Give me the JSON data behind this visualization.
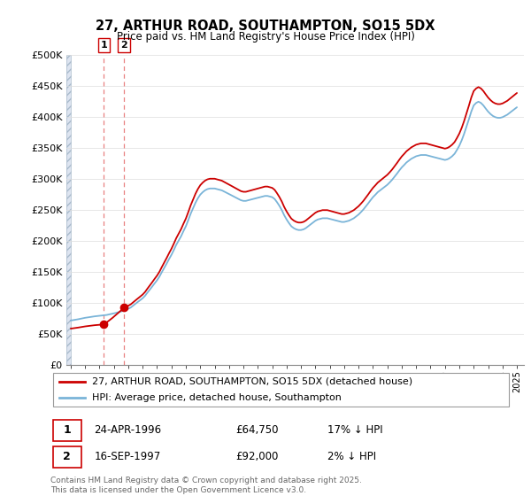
{
  "title": "27, ARTHUR ROAD, SOUTHAMPTON, SO15 5DX",
  "subtitle": "Price paid vs. HM Land Registry's House Price Index (HPI)",
  "ylim": [
    0,
    500000
  ],
  "yticks": [
    0,
    50000,
    100000,
    150000,
    200000,
    250000,
    300000,
    350000,
    400000,
    450000,
    500000
  ],
  "xlim_start": 1993.7,
  "xlim_end": 2025.5,
  "legend_line1": "27, ARTHUR ROAD, SOUTHAMPTON, SO15 5DX (detached house)",
  "legend_line2": "HPI: Average price, detached house, Southampton",
  "footer": "Contains HM Land Registry data © Crown copyright and database right 2025.\nThis data is licensed under the Open Government Licence v3.0.",
  "transactions": [
    {
      "id": 1,
      "date": "24-APR-1996",
      "price": 64750,
      "pct": "17% ↓ HPI",
      "year": 1996.3
    },
    {
      "id": 2,
      "date": "16-SEP-1997",
      "price": 92000,
      "pct": "2% ↓ HPI",
      "year": 1997.7
    }
  ],
  "hpi_color": "#7ab4d8",
  "price_color": "#cc0000",
  "marker_color": "#cc0000",
  "vline_color": "#e88080",
  "background_color": "#ffffff",
  "grid_color": "#dddddd",
  "hatch_bg": "#dde4f0",
  "years_hpi": [
    1994.0,
    1994.08,
    1994.17,
    1994.25,
    1994.33,
    1994.42,
    1994.5,
    1994.58,
    1994.67,
    1994.75,
    1994.83,
    1994.92,
    1995.0,
    1995.08,
    1995.17,
    1995.25,
    1995.33,
    1995.42,
    1995.5,
    1995.58,
    1995.67,
    1995.75,
    1995.83,
    1995.92,
    1996.0,
    1996.08,
    1996.17,
    1996.25,
    1996.33,
    1996.42,
    1996.5,
    1996.58,
    1996.67,
    1996.75,
    1996.83,
    1996.92,
    1997.0,
    1997.08,
    1997.17,
    1997.25,
    1997.33,
    1997.42,
    1997.5,
    1997.58,
    1997.67,
    1997.75,
    1997.83,
    1997.92,
    1998.0,
    1998.08,
    1998.17,
    1998.25,
    1998.33,
    1998.42,
    1998.5,
    1998.58,
    1998.67,
    1998.75,
    1998.83,
    1998.92,
    1999.0,
    1999.17,
    1999.33,
    1999.5,
    1999.67,
    1999.83,
    2000.0,
    2000.17,
    2000.33,
    2000.5,
    2000.67,
    2000.83,
    2001.0,
    2001.17,
    2001.33,
    2001.5,
    2001.67,
    2001.83,
    2002.0,
    2002.17,
    2002.33,
    2002.5,
    2002.67,
    2002.83,
    2003.0,
    2003.17,
    2003.33,
    2003.5,
    2003.67,
    2003.83,
    2004.0,
    2004.17,
    2004.33,
    2004.5,
    2004.67,
    2004.83,
    2005.0,
    2005.17,
    2005.33,
    2005.5,
    2005.67,
    2005.83,
    2006.0,
    2006.17,
    2006.33,
    2006.5,
    2006.67,
    2006.83,
    2007.0,
    2007.17,
    2007.33,
    2007.5,
    2007.67,
    2007.83,
    2008.0,
    2008.17,
    2008.33,
    2008.5,
    2008.67,
    2008.83,
    2009.0,
    2009.17,
    2009.33,
    2009.5,
    2009.67,
    2009.83,
    2010.0,
    2010.17,
    2010.33,
    2010.5,
    2010.67,
    2010.83,
    2011.0,
    2011.17,
    2011.33,
    2011.5,
    2011.67,
    2011.83,
    2012.0,
    2012.17,
    2012.33,
    2012.5,
    2012.67,
    2012.83,
    2013.0,
    2013.17,
    2013.33,
    2013.5,
    2013.67,
    2013.83,
    2014.0,
    2014.17,
    2014.33,
    2014.5,
    2014.67,
    2014.83,
    2015.0,
    2015.17,
    2015.33,
    2015.5,
    2015.67,
    2015.83,
    2016.0,
    2016.17,
    2016.33,
    2016.5,
    2016.67,
    2016.83,
    2017.0,
    2017.17,
    2017.33,
    2017.5,
    2017.67,
    2017.83,
    2018.0,
    2018.17,
    2018.33,
    2018.5,
    2018.67,
    2018.83,
    2019.0,
    2019.17,
    2019.33,
    2019.5,
    2019.67,
    2019.83,
    2020.0,
    2020.17,
    2020.33,
    2020.5,
    2020.67,
    2020.83,
    2021.0,
    2021.17,
    2021.33,
    2021.5,
    2021.67,
    2021.83,
    2022.0,
    2022.17,
    2022.33,
    2022.5,
    2022.67,
    2022.83,
    2023.0,
    2023.17,
    2023.33,
    2023.5,
    2023.67,
    2023.83,
    2024.0,
    2024.17,
    2024.33,
    2024.5,
    2024.67,
    2024.83,
    2025.0
  ],
  "values_hpi": [
    71000,
    71300,
    71600,
    71900,
    72200,
    72600,
    73000,
    73400,
    73800,
    74200,
    74600,
    75000,
    75400,
    75700,
    76000,
    76300,
    76600,
    76900,
    77200,
    77500,
    77800,
    78000,
    78200,
    78400,
    78600,
    78800,
    79000,
    79200,
    79400,
    79700,
    80000,
    80400,
    80800,
    81200,
    81600,
    82000,
    82500,
    83000,
    83500,
    84000,
    84500,
    85000,
    85500,
    86200,
    86900,
    87600,
    88300,
    89000,
    90000,
    91000,
    92000,
    93500,
    95000,
    96500,
    98000,
    99500,
    101000,
    102500,
    104000,
    105500,
    107000,
    111000,
    116000,
    121000,
    126000,
    131000,
    136000,
    142000,
    149000,
    156000,
    163000,
    170000,
    177000,
    185000,
    193000,
    200000,
    207000,
    215000,
    223000,
    233000,
    243000,
    252000,
    261000,
    268000,
    274000,
    278000,
    281000,
    283000,
    284000,
    284000,
    284000,
    283000,
    282000,
    281000,
    279000,
    277000,
    275000,
    273000,
    271000,
    269000,
    267000,
    265000,
    264000,
    264000,
    265000,
    266000,
    267000,
    268000,
    269000,
    270000,
    271000,
    272000,
    272000,
    271000,
    270000,
    267000,
    262000,
    256000,
    249000,
    241000,
    234000,
    228000,
    223000,
    220000,
    218000,
    217000,
    217000,
    218000,
    220000,
    223000,
    226000,
    229000,
    232000,
    234000,
    235000,
    236000,
    236000,
    236000,
    235000,
    234000,
    233000,
    232000,
    231000,
    230000,
    230000,
    231000,
    232000,
    234000,
    236000,
    239000,
    242000,
    246000,
    250000,
    255000,
    260000,
    265000,
    270000,
    274000,
    278000,
    281000,
    284000,
    287000,
    290000,
    294000,
    298000,
    303000,
    308000,
    313000,
    318000,
    322000,
    326000,
    329000,
    332000,
    334000,
    336000,
    337000,
    338000,
    338000,
    338000,
    337000,
    336000,
    335000,
    334000,
    333000,
    332000,
    331000,
    330000,
    331000,
    333000,
    336000,
    340000,
    346000,
    353000,
    362000,
    372000,
    384000,
    396000,
    408000,
    418000,
    422000,
    424000,
    422000,
    418000,
    413000,
    408000,
    404000,
    401000,
    399000,
    398000,
    398000,
    399000,
    401000,
    403000,
    406000,
    409000,
    412000,
    415000
  ]
}
